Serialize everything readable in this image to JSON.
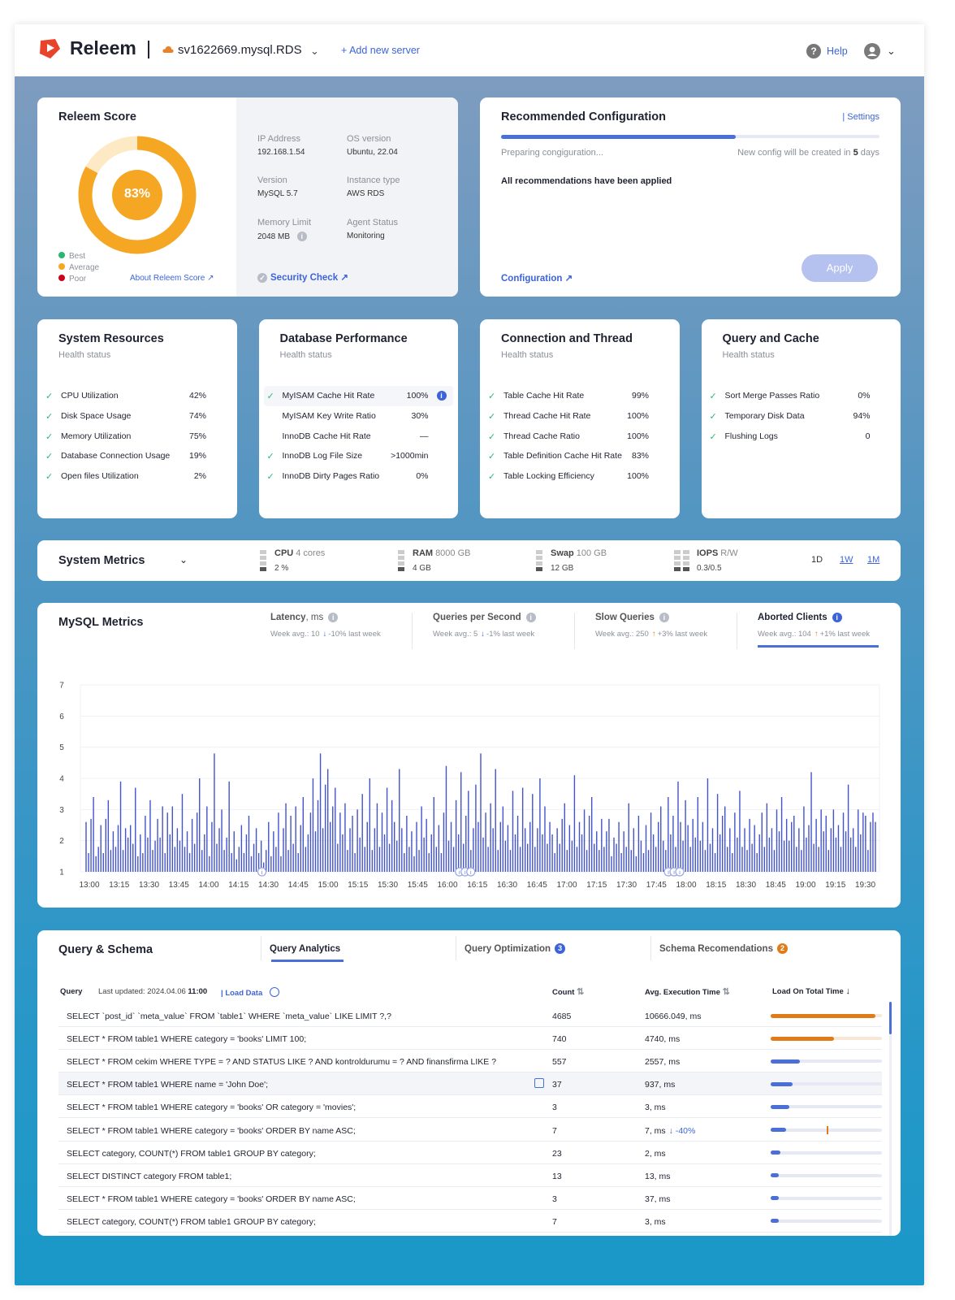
{
  "header": {
    "brand": "Releem",
    "server_name": "sv1622669.mysql.RDS",
    "add_server": "+ Add new server",
    "help": "Help"
  },
  "score_card": {
    "title": "Releem Score",
    "score": "83%",
    "score_fraction": 0.83,
    "legend": [
      "Best",
      "Average",
      "Poor"
    ],
    "legend_colors": [
      "#2bb673",
      "#f5a623",
      "#d0021b"
    ],
    "about_link": "About Releem Score",
    "info": [
      {
        "label": "IP Address",
        "value": "192.168.1.54"
      },
      {
        "label": "OS version",
        "value": "Ubuntu, 22.04"
      },
      {
        "label": "Version",
        "value": "MySQL 5.7"
      },
      {
        "label": "Instance type",
        "value": "AWS RDS"
      },
      {
        "label": "Memory Limit",
        "value": "2048 MB"
      },
      {
        "label": "Agent Status",
        "value": "Monitoring"
      }
    ],
    "security_check": "Security Check"
  },
  "recommended": {
    "title": "Recommended Configuration",
    "settings_link": "| Settings",
    "progress_fraction": 0.62,
    "preparing": "Preparing congiguration...",
    "new_config_prefix": "New config will be created in ",
    "new_config_days": "5",
    "new_config_suffix": " days",
    "applied_msg": "All recommendations have been applied",
    "configuration_link": "Configuration",
    "apply_button": "Apply"
  },
  "health_cards": [
    {
      "title": "System Resources",
      "subtitle": "Health status",
      "rows": [
        {
          "label": "CPU Utilization",
          "value": "42%",
          "check": true
        },
        {
          "label": "Disk Space Usage",
          "value": "74%",
          "check": true
        },
        {
          "label": "Memory Utilization",
          "value": "75%",
          "check": true
        },
        {
          "label": "Database Connection Usage",
          "value": "19%",
          "check": true
        },
        {
          "label": "Open files Utilization",
          "value": "2%",
          "check": true
        }
      ]
    },
    {
      "title": "Database Performance",
      "subtitle": "Health status",
      "rows": [
        {
          "label": "MyISAM Cache Hit Rate",
          "value": "100%",
          "check": true,
          "highlight": true
        },
        {
          "label": "MyISAM Key Write Ratio",
          "value": "30%",
          "check": false
        },
        {
          "label": "InnoDB Cache Hit Rate",
          "value": "—",
          "check": false
        },
        {
          "label": "InnoDB Log File Size",
          "value": ">1000min",
          "check": true
        },
        {
          "label": "InnoDB Dirty Pages Ratio",
          "value": "0%",
          "check": true
        }
      ]
    },
    {
      "title": "Connection and Thread",
      "subtitle": "Health status",
      "rows": [
        {
          "label": "Table Cache Hit Rate",
          "value": "99%",
          "check": true
        },
        {
          "label": "Thread Cache Hit Rate",
          "value": "100%",
          "check": true
        },
        {
          "label": "Thread Cache Ratio",
          "value": "100%",
          "check": true
        },
        {
          "label": "Table Definition Cache Hit Rate",
          "value": "83%",
          "check": true
        },
        {
          "label": "Table Locking Efficiency",
          "value": "100%",
          "check": true
        }
      ]
    },
    {
      "title": "Query and Cache",
      "subtitle": "Health status",
      "rows": [
        {
          "label": "Sort Merge Passes Ratio",
          "value": "0%",
          "check": true
        },
        {
          "label": "Temporary Disk Data",
          "value": "94%",
          "check": true
        },
        {
          "label": "Flushing Logs",
          "value": "0",
          "check": true
        }
      ]
    }
  ],
  "system_metrics": {
    "title": "System Metrics",
    "items": [
      {
        "name": "CPU",
        "spec": "4 cores",
        "value": "2 %"
      },
      {
        "name": "RAM",
        "spec": "8000 GB",
        "value": "4 GB"
      },
      {
        "name": "Swap",
        "spec": "100 GB",
        "value": "12 GB"
      },
      {
        "name": "IOPS",
        "spec": "R/W",
        "value": "0.3/0.5"
      }
    ],
    "ranges": [
      "1D",
      "1W",
      "1M"
    ],
    "active_range": "1D"
  },
  "mysql_metrics": {
    "title": "MySQL Metrics",
    "tabs": [
      {
        "label": "Latency",
        "unit": ", ms",
        "week": "Week avg.: 10",
        "arrow": "↓",
        "change": "-10% last week",
        "dir": "down",
        "active": false
      },
      {
        "label": "Queries per Second",
        "unit": "",
        "week": "Week avg.: 5",
        "arrow": "↓",
        "change": "-1% last week",
        "dir": "down",
        "active": false
      },
      {
        "label": "Slow Queries",
        "unit": "",
        "week": "Week avg.: 250",
        "arrow": "↑",
        "change": "+3% last week",
        "dir": "up",
        "active": false
      },
      {
        "label": "Aborted Clients",
        "unit": "",
        "week": "Week avg.: 104",
        "arrow": "↑",
        "change": "+1% last week",
        "dir": "up",
        "active": true
      }
    ]
  },
  "chart_data": {
    "type": "bar",
    "title": "",
    "xlabel": "",
    "ylabel": "",
    "ylim": [
      1,
      7
    ],
    "y_ticks": [
      1,
      2,
      3,
      4,
      5,
      6,
      7
    ],
    "x_ticks": [
      "13:00",
      "13:15",
      "13:30",
      "13:45",
      "14:00",
      "14:15",
      "14:30",
      "14:45",
      "15:00",
      "15:15",
      "15:30",
      "15:45",
      "16:00",
      "16:15",
      "16:30",
      "16:45",
      "17:00",
      "17:15",
      "17:30",
      "17:45",
      "18:00",
      "18:15",
      "18:30",
      "18:45",
      "19:00",
      "19:15",
      "19:30"
    ],
    "grid": true,
    "color": "#4353c9",
    "series": [
      {
        "values": [
          2.6,
          1.6,
          2.7,
          3.4,
          1.5,
          1.8,
          2.5,
          1.6,
          2.7,
          3.3,
          1.7,
          2.3,
          1.8,
          2.5,
          3.9,
          1.7,
          2.4,
          2.1,
          2.5,
          1.9,
          3.7,
          1.5,
          2.2,
          1.6,
          2.8,
          2.1,
          3.3,
          1.7,
          2.0,
          2.7,
          2.1,
          3.1,
          1.6,
          2.9,
          2.2,
          3.1,
          1.8,
          2.4,
          2.0,
          3.5,
          1.8,
          2.3,
          1.6,
          2.7,
          1.9,
          2.9,
          4.0,
          1.7,
          2.2,
          3.1,
          1.5,
          2.6,
          4.8,
          1.9,
          2.4,
          3.0,
          1.7,
          2.1,
          3.9,
          1.6,
          2.3,
          1.4,
          1.8,
          2.5,
          1.6,
          2.2,
          2.8,
          1.5,
          1.9,
          2.4,
          1.6,
          2.0,
          1.3,
          1.7,
          2.6,
          1.5,
          2.3,
          1.8,
          2.9,
          1.5,
          2.4,
          3.2,
          1.7,
          2.8,
          1.9,
          3.1,
          1.6,
          2.5,
          3.4,
          1.8,
          2.2,
          2.9,
          4.0,
          2.3,
          3.3,
          4.8,
          2.4,
          3.8,
          4.3,
          2.6,
          3.1,
          3.7,
          1.9,
          2.9,
          2.2,
          3.2,
          1.7,
          2.4,
          2.8,
          1.6,
          3.0,
          2.1,
          3.5,
          1.8,
          2.6,
          4.0,
          1.7,
          2.4,
          3.2,
          1.8,
          2.9,
          2.2,
          3.7,
          1.9,
          3.3,
          2.6,
          2.0,
          4.3,
          2.4,
          1.6,
          2.8,
          1.8,
          2.3,
          1.5,
          2.6,
          1.7,
          3.1,
          2.1,
          2.7,
          1.6,
          2.2,
          3.4,
          1.8,
          2.5,
          1.6,
          2.9,
          4.4,
          2.0,
          2.6,
          1.8,
          3.3,
          2.2,
          4.2,
          1.9,
          2.8,
          3.6,
          1.7,
          2.4,
          3.8,
          2.6,
          4.8,
          2.1,
          2.9,
          1.8,
          3.2,
          2.4,
          4.3,
          1.7,
          2.6,
          3.1,
          2.0,
          2.5,
          1.7,
          3.6,
          2.2,
          2.8,
          1.8,
          3.7,
          2.4,
          1.9,
          2.6,
          3.5,
          1.8,
          2.4,
          4.0,
          2.2,
          3.1,
          1.9,
          2.6,
          2.2,
          1.6,
          2.4,
          1.9,
          2.7,
          3.2,
          1.7,
          2.5,
          2.0,
          4.1,
          1.8,
          2.6,
          2.2,
          3.0,
          1.7,
          2.8,
          3.4,
          1.9,
          2.3,
          1.7,
          2.7,
          1.8,
          2.3,
          2.7,
          1.5,
          2.1,
          1.9,
          2.6,
          1.6,
          2.3,
          1.8,
          3.2,
          1.7,
          2.4,
          1.5,
          2.8,
          2.0,
          1.6,
          2.5,
          1.7,
          2.9,
          2.2,
          1.8,
          2.6,
          3.1,
          2.0,
          1.7,
          3.4,
          2.2,
          2.8,
          1.8,
          3.9,
          2.6,
          2.0,
          3.3,
          2.5,
          1.8,
          2.7,
          2.1,
          3.4,
          2.0,
          2.6,
          1.7,
          4.0,
          1.9,
          2.4,
          1.6,
          3.5,
          2.2,
          2.8,
          3.1,
          1.8,
          2.4,
          1.6,
          2.9,
          2.1,
          3.6,
          1.8,
          2.4,
          1.7,
          2.7,
          1.9,
          2.5,
          1.6,
          2.2,
          2.9,
          1.8,
          3.2,
          2.1,
          2.4,
          1.7,
          3.0,
          2.3,
          3.4,
          2.0,
          2.7,
          2.0,
          2.6,
          2.8,
          1.8,
          2.4,
          1.7,
          3.1,
          2.1,
          2.5,
          4.2,
          1.9,
          2.7,
          1.8,
          3.0,
          2.3,
          2.8,
          1.7,
          2.4,
          3.0,
          2.1,
          2.5,
          1.8,
          2.9,
          2.3,
          3.8,
          2.1,
          2.4,
          1.8,
          3.0,
          2.2,
          2.9,
          2.8,
          1.7,
          2.6,
          2.9,
          2.6
        ]
      }
    ],
    "markers_at": [
      "14:30",
      "16:15",
      "18:00"
    ]
  },
  "query_schema": {
    "title": "Query & Schema",
    "tabs": [
      {
        "label": "Query Analytics",
        "active": true,
        "badge": ""
      },
      {
        "label": "Query Optimization",
        "active": false,
        "badge": "3"
      },
      {
        "label": "Schema Recomendations",
        "active": false,
        "badge": "2"
      }
    ],
    "query_label": "Query",
    "last_updated_prefix": "Last updated: 2024.04.06 ",
    "last_updated_time": "11:00",
    "load_data": "Load Data",
    "columns": {
      "count": "Count",
      "avg": "Avg. Execution Time",
      "load": "Load On Total Time"
    },
    "rows": [
      {
        "query": "SELECT `post_id` `meta_value` FROM `table1` WHERE `meta_value` LIKE LIMIT ?,?",
        "count": "4685",
        "time": "10666.049, ms",
        "load": 0.94,
        "color": "#e07b18",
        "track": "#f7e8d6"
      },
      {
        "query": "SELECT * FROM table1 WHERE category = 'books' LIMIT 100;",
        "count": "740",
        "time": "4740, ms",
        "load": 0.57,
        "color": "#e07b18",
        "track": "#f7e8d6"
      },
      {
        "query": "SELECT * FROM cekim WHERE TYPE = ? AND STATUS LIKE ? AND kontroldurumu = ? AND finansfirma LIKE ?",
        "count": "557",
        "time": "2557, ms",
        "load": 0.26,
        "color": "#4a6fd8",
        "track": "#e6e9f3"
      },
      {
        "query": "SELECT * FROM table1 WHERE name = 'John Doe';",
        "count": "37",
        "time": "937, ms",
        "load": 0.2,
        "color": "#4a6fd8",
        "track": "#e6e9f3",
        "highlight": true
      },
      {
        "query": "SELECT * FROM table1 WHERE category = 'books' OR category = 'movies';",
        "count": "3",
        "time": "3, ms",
        "load": 0.17,
        "color": "#4a6fd8",
        "track": "#e6e9f3"
      },
      {
        "query": "SELECT * FROM table1 WHERE category = 'books' ORDER BY name ASC;",
        "count": "7",
        "time": "7, ms",
        "load": 0.14,
        "color": "#4a6fd8",
        "track": "#e6e9f3",
        "delta": "↓ -40%",
        "tick": 0.5
      },
      {
        "query": "SELECT category, COUNT(*) FROM table1 GROUP BY category;",
        "count": "23",
        "time": "2, ms",
        "load": 0.09,
        "color": "#4a6fd8",
        "track": "#e6e9f3"
      },
      {
        "query": "SELECT DISTINCT category FROM table1;",
        "count": "13",
        "time": "13, ms",
        "load": 0.07,
        "color": "#4a6fd8",
        "track": "#e6e9f3"
      },
      {
        "query": "SELECT * FROM table1 WHERE category = 'books' ORDER BY name ASC;",
        "count": "3",
        "time": "37, ms",
        "load": 0.07,
        "color": "#4a6fd8",
        "track": "#e6e9f3"
      },
      {
        "query": "SELECT category, COUNT(*) FROM table1 GROUP BY category;",
        "count": "7",
        "time": "3, ms",
        "load": 0.07,
        "color": "#4a6fd8",
        "track": "#e6e9f3"
      }
    ]
  },
  "icons": {
    "logo": "releem-logo-icon",
    "cloud": "cloud-icon",
    "help": "help-icon",
    "user": "user-icon",
    "check": "check-icon",
    "info": "info-icon",
    "external": "external-link-icon",
    "refresh": "refresh-icon",
    "sort": "sort-icon",
    "copy": "copy-icon"
  },
  "colors": {
    "accent": "#3c64d8",
    "score": "#f5a623",
    "score_track": "#fde9c4",
    "bar": "#4353c9",
    "check": "#2bb673",
    "orange": "#e07b18"
  }
}
